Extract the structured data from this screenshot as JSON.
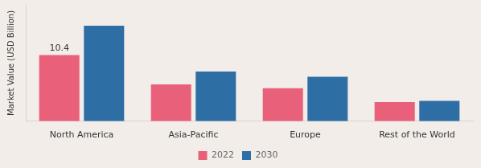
{
  "chart_data": {
    "type": "bar",
    "categories": [
      "North America",
      "Asia-Pacific",
      "Europe",
      "Rest of the World"
    ],
    "series": [
      {
        "name": "2022",
        "color": "#e8607a",
        "values": [
          10.4,
          5.8,
          5.2,
          3.0
        ]
      },
      {
        "name": "2030",
        "color": "#2d6fa4",
        "values": [
          15.0,
          7.8,
          7.0,
          3.2
        ]
      }
    ],
    "ylabel": "Market Value (USD Billion)",
    "ylim": [
      0,
      18.3
    ],
    "annotations": [
      {
        "text": "10.4",
        "x": "North America",
        "y": 10.4,
        "series": "2022"
      }
    ],
    "legend": "bottom",
    "grid": false,
    "tick_labels": "x"
  }
}
